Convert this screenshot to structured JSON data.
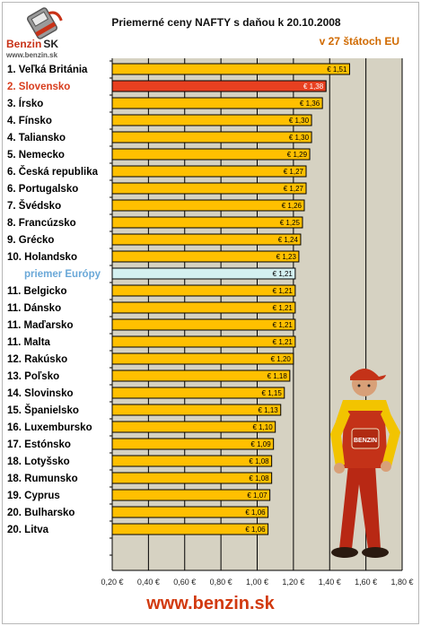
{
  "header": {
    "title": "Priemerné ceny NAFTY s daňou k 20.10.2008",
    "subtitle": "v 27 štátoch EU",
    "logo_text": "Benzin",
    "logo_text_suffix": "SK",
    "logo_url": "www.benzin.sk"
  },
  "footer": {
    "url": "www.benzin.sk"
  },
  "colors": {
    "bar_default": "#ffc000",
    "bar_highlight": "#e84020",
    "bar_average": "#d4f0f0",
    "plot_background": "#d6d2c2",
    "label_highlight": "#d83c1c",
    "label_average": "#6aa8d8",
    "accent": "#d06a00"
  },
  "chart_data": {
    "type": "bar",
    "orientation": "horizontal",
    "title": "Priemerné ceny NAFTY s daňou k 20.10.2008",
    "subtitle": "v 27 štátoch EU",
    "xlim": [
      0.2,
      1.8
    ],
    "x_ticks": [
      "0,20 €",
      "0,40 €",
      "0,60 €",
      "0,80 €",
      "1,00 €",
      "1,20 €",
      "1,40 €",
      "1,60 €",
      "1,80 €"
    ],
    "grid": "vertical",
    "categories": [
      "1. Veľká Británia",
      "2. Slovensko",
      "3. Írsko",
      "4. Fínsko",
      "4. Taliansko",
      "5. Nemecko",
      "6. Česká republika",
      "6. Portugalsko",
      "7. Švédsko",
      "8. Francúzsko",
      "9. Grécko",
      "10. Holandsko",
      "priemer Európy",
      "11. Belgicko",
      "11. Dánsko",
      "11. Maďarsko",
      "11. Malta",
      "12. Rakúsko",
      "13. Poľsko",
      "14. Slovinsko",
      "15. Španielsko",
      "16. Luxembursko",
      "17. Estónsko",
      "18. Lotyšsko",
      "18. Rumunsko",
      "19. Cyprus",
      "20. Bulharsko",
      "20. Litva"
    ],
    "values": [
      1.51,
      1.38,
      1.36,
      1.3,
      1.3,
      1.29,
      1.27,
      1.27,
      1.26,
      1.25,
      1.24,
      1.23,
      1.21,
      1.21,
      1.21,
      1.21,
      1.21,
      1.2,
      1.18,
      1.15,
      1.13,
      1.1,
      1.09,
      1.08,
      1.08,
      1.07,
      1.06,
      1.06
    ],
    "value_labels": [
      "€ 1,51",
      "€ 1,38",
      "€ 1,36",
      "€ 1,30",
      "€ 1,30",
      "€ 1,29",
      "€ 1,27",
      "€ 1,27",
      "€ 1,26",
      "€ 1,25",
      "€ 1,24",
      "€ 1,23",
      "€ 1,21",
      "€ 1,21",
      "€ 1,21",
      "€ 1,21",
      "€ 1,21",
      "€ 1,20",
      "€ 1,18",
      "€ 1,15",
      "€ 1,13",
      "€ 1,10",
      "€ 1,09",
      "€ 1,08",
      "€ 1,08",
      "€ 1,07",
      "€ 1,06",
      "€ 1,06"
    ],
    "highlight": [
      "normal",
      "highlight",
      "normal",
      "normal",
      "normal",
      "normal",
      "normal",
      "normal",
      "normal",
      "normal",
      "normal",
      "normal",
      "average",
      "normal",
      "normal",
      "normal",
      "normal",
      "normal",
      "normal",
      "normal",
      "normal",
      "normal",
      "normal",
      "normal",
      "normal",
      "normal",
      "normal",
      "normal"
    ]
  }
}
